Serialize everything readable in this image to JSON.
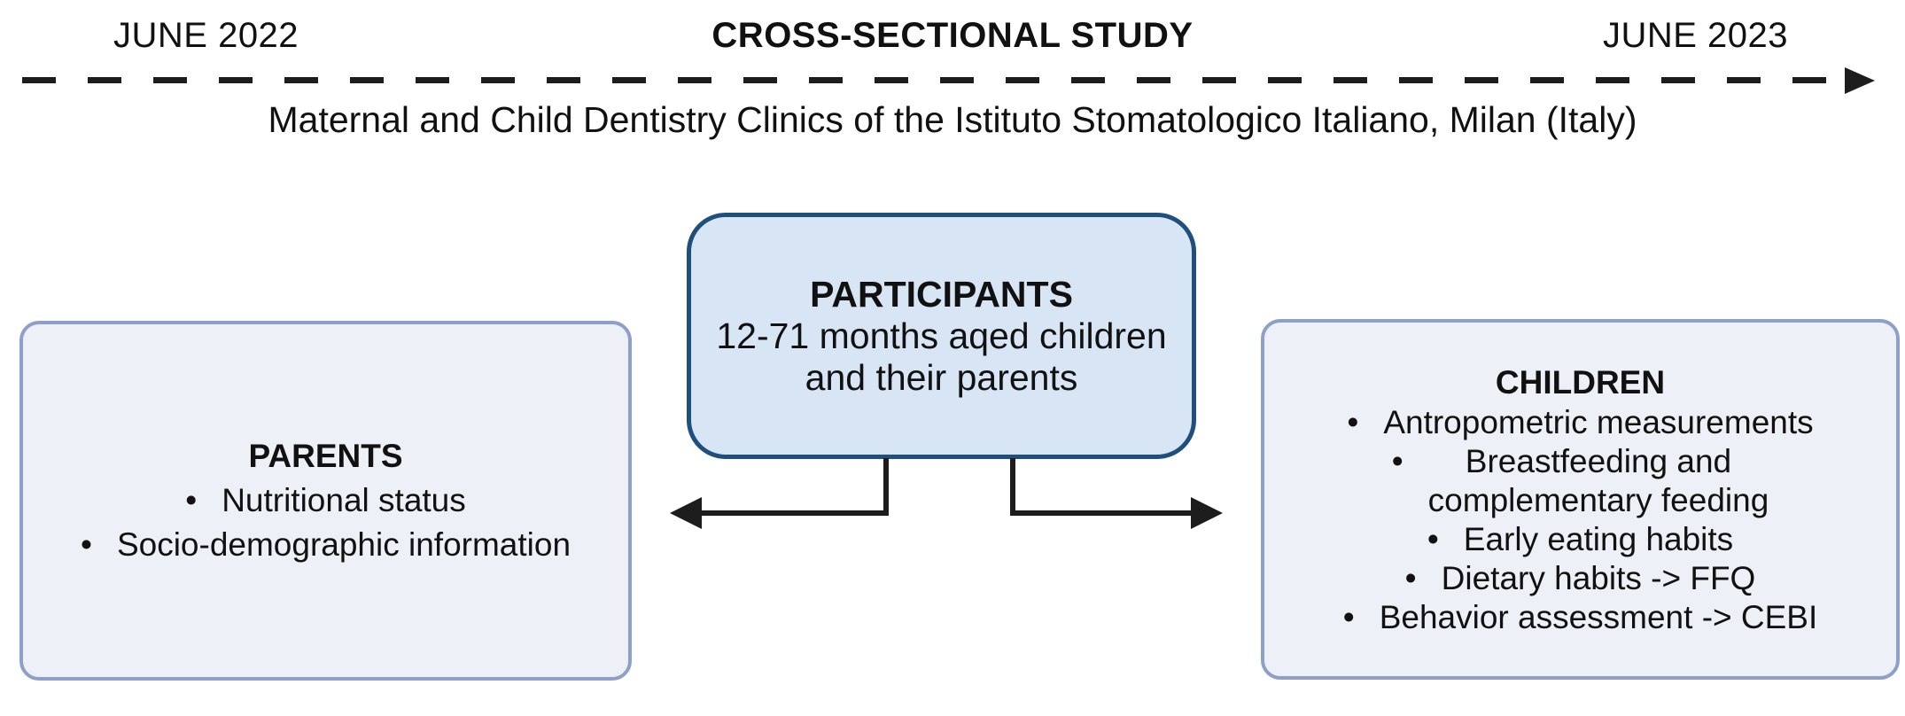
{
  "timeline": {
    "start_label": "JUNE 2022",
    "title": "CROSS-SECTIONAL STUDY",
    "end_label": "JUNE 2023",
    "subtitle": "Maternal and Child Dentistry Clinics of the Istituto Stomatologico Italiano, Milan (Italy)"
  },
  "participants_box": {
    "title": "PARTICIPANTS",
    "description": "12-71 months aqed children\nand their parents"
  },
  "parents_box": {
    "title": "PARENTS",
    "items": [
      {
        "text": "Nutritional status"
      },
      {
        "text": "Socio-demographic information"
      }
    ]
  },
  "children_box": {
    "title": "CHILDREN",
    "items": [
      {
        "text": "Antropometric measurements"
      },
      {
        "text": "Breastfeeding and\ncomplementary feeding"
      },
      {
        "text": "Early eating habits"
      },
      {
        "text": "Dietary habits -> FFQ"
      },
      {
        "text": "Behavior assessment -> CEBI"
      }
    ]
  },
  "colors": {
    "participants_fill": "#d8e5f5",
    "participants_border": "#1e4f7d",
    "side_fill": "#edf0f7",
    "side_border": "#8e9fca",
    "line": "#1d1d1d",
    "text": "#111111"
  }
}
